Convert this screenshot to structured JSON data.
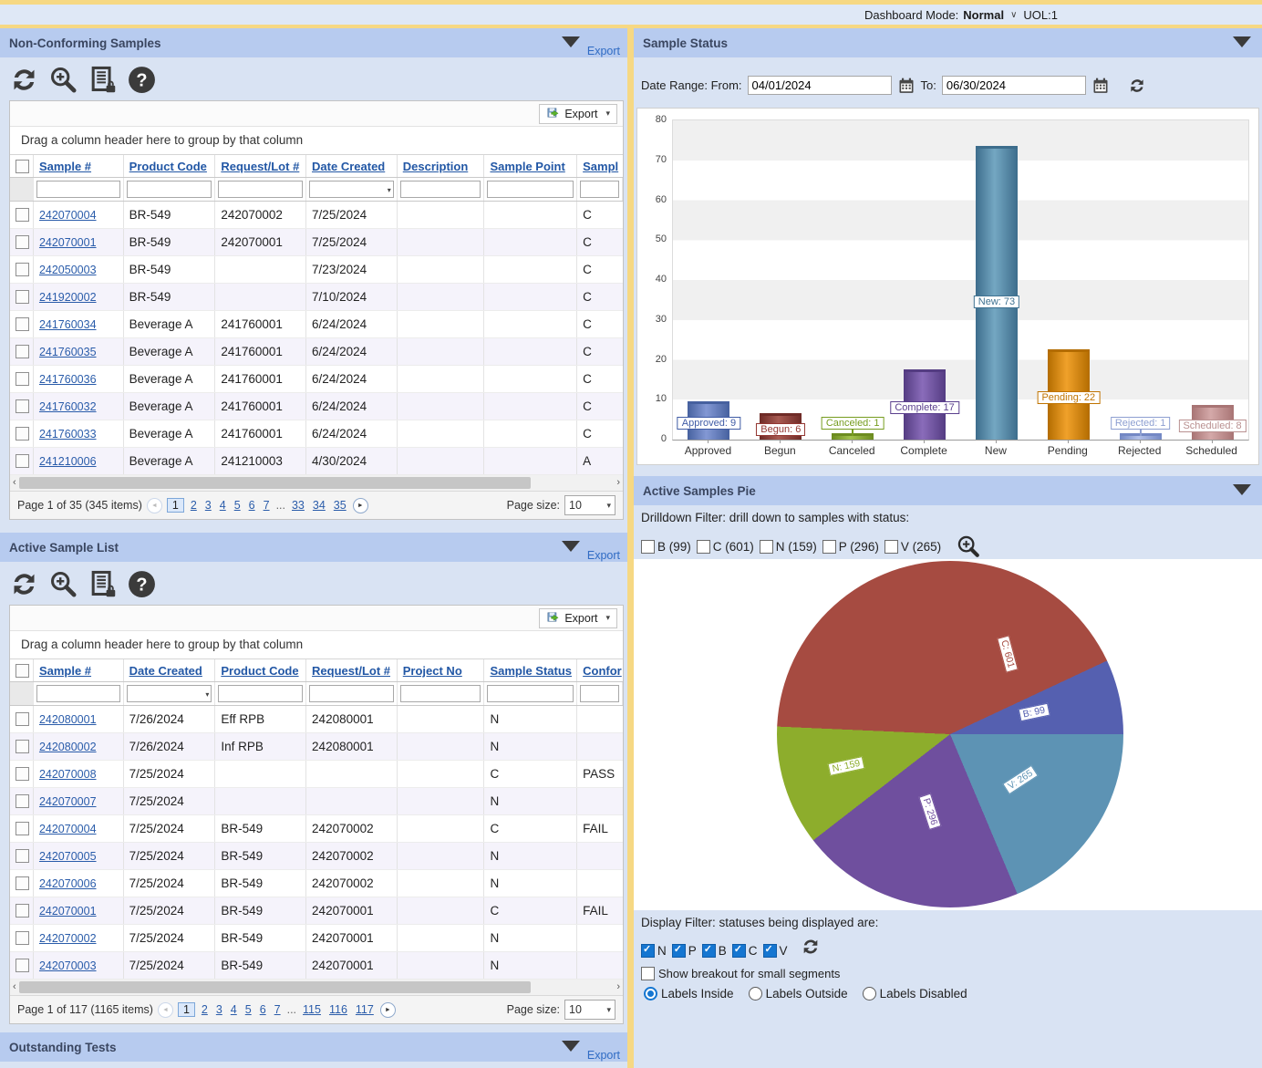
{
  "topbar": {
    "mode_label": "Dashboard Mode:",
    "mode_value": "Normal",
    "uol": "UOL:1"
  },
  "panels": {
    "non_conforming": {
      "title": "Non-Conforming Samples",
      "export": "Export"
    },
    "sample_status": {
      "title": "Sample Status",
      "from_label": "Date Range: From:",
      "date_from": "04/01/2024",
      "to_label": "To:",
      "date_to": "06/30/2024"
    },
    "active_sample_list": {
      "title": "Active Sample List",
      "export": "Export"
    },
    "active_samples_pie": {
      "title": "Active Samples Pie",
      "drilldown_label": "Drilldown Filter: drill down to samples with status:",
      "drill_options": [
        "B (99)",
        "C (601)",
        "N (159)",
        "P (296)",
        "V (265)"
      ],
      "display_label": "Display Filter: statuses being displayed are:",
      "display_options": [
        "N",
        "P",
        "B",
        "C",
        "V"
      ],
      "breakout_label": "Show breakout for small segments",
      "radio_options": [
        "Labels Inside",
        "Labels Outside",
        "Labels Disabled"
      ],
      "radio_selected": 0
    },
    "outstanding_tests": {
      "title": "Outstanding Tests",
      "export": "Export"
    }
  },
  "grid_common": {
    "toolbar_export": "Export",
    "drag_hint": "Drag a column header here to group by that column",
    "page_size_label": "Page size:",
    "page_size": "10",
    "ellipsis": "..."
  },
  "nc_grid": {
    "columns": [
      "Sample #",
      "Product Code",
      "Request/Lot #",
      "Date Created",
      "Description",
      "Sample Point",
      "Sampl"
    ],
    "filter_dropdown_col": 3,
    "rows": [
      [
        "242070004",
        "BR-549",
        "242070002",
        "7/25/2024",
        "",
        "",
        "C"
      ],
      [
        "242070001",
        "BR-549",
        "242070001",
        "7/25/2024",
        "",
        "",
        "C"
      ],
      [
        "242050003",
        "BR-549",
        "",
        "7/23/2024",
        "",
        "",
        "C"
      ],
      [
        "241920002",
        "BR-549",
        "",
        "7/10/2024",
        "",
        "",
        "C"
      ],
      [
        "241760034",
        "Beverage A",
        "241760001",
        "6/24/2024",
        "",
        "",
        "C"
      ],
      [
        "241760035",
        "Beverage A",
        "241760001",
        "6/24/2024",
        "",
        "",
        "C"
      ],
      [
        "241760036",
        "Beverage A",
        "241760001",
        "6/24/2024",
        "",
        "",
        "C"
      ],
      [
        "241760032",
        "Beverage A",
        "241760001",
        "6/24/2024",
        "",
        "",
        "C"
      ],
      [
        "241760033",
        "Beverage A",
        "241760001",
        "6/24/2024",
        "",
        "",
        "C"
      ],
      [
        "241210006",
        "Beverage A",
        "241210003",
        "4/30/2024",
        "",
        "",
        "A"
      ]
    ],
    "pager_summary": "Page 1 of 35 (345 items)",
    "pages_head": [
      "1",
      "2",
      "3",
      "4",
      "5",
      "6",
      "7"
    ],
    "pages_tail": [
      "33",
      "34",
      "35"
    ],
    "current_page": "1"
  },
  "asl_grid": {
    "columns": [
      "Sample #",
      "Date Created",
      "Product Code",
      "Request/Lot #",
      "Project No",
      "Sample Status",
      "Confor"
    ],
    "filter_dropdown_col": 1,
    "rows": [
      [
        "242080001",
        "7/26/2024",
        "Eff RPB",
        "242080001",
        "",
        "N",
        ""
      ],
      [
        "242080002",
        "7/26/2024",
        "Inf RPB",
        "242080001",
        "",
        "N",
        ""
      ],
      [
        "242070008",
        "7/25/2024",
        "",
        "",
        "",
        "C",
        "PASS"
      ],
      [
        "242070007",
        "7/25/2024",
        "",
        "",
        "",
        "N",
        ""
      ],
      [
        "242070004",
        "7/25/2024",
        "BR-549",
        "242070002",
        "",
        "C",
        "FAIL"
      ],
      [
        "242070005",
        "7/25/2024",
        "BR-549",
        "242070002",
        "",
        "N",
        ""
      ],
      [
        "242070006",
        "7/25/2024",
        "BR-549",
        "242070002",
        "",
        "N",
        ""
      ],
      [
        "242070001",
        "7/25/2024",
        "BR-549",
        "242070001",
        "",
        "C",
        "FAIL"
      ],
      [
        "242070002",
        "7/25/2024",
        "BR-549",
        "242070001",
        "",
        "N",
        ""
      ],
      [
        "242070003",
        "7/25/2024",
        "BR-549",
        "242070001",
        "",
        "N",
        ""
      ]
    ],
    "pager_summary": "Page 1 of 117 (1165 items)",
    "pages_head": [
      "1",
      "2",
      "3",
      "4",
      "5",
      "6",
      "7"
    ],
    "pages_tail": [
      "115",
      "116",
      "117"
    ],
    "current_page": "1"
  },
  "chart_data": [
    {
      "type": "bar",
      "title": "Sample Status",
      "categories": [
        "Approved",
        "Begun",
        "Canceled",
        "Complete",
        "New",
        "Pending",
        "Rejected",
        "Scheduled"
      ],
      "values": [
        9,
        6,
        1,
        17,
        73,
        22,
        1,
        8
      ],
      "bar_labels": [
        "Approved: 9",
        "Begun: 6",
        "Canceled: 1",
        "Complete: 17",
        "New: 73",
        "Pending: 22",
        "Rejected: 1",
        "Scheduled: 8"
      ],
      "colors": [
        "#5874bd",
        "#8e3a34",
        "#8aab31",
        "#6b4c9e",
        "#4f87a8",
        "#d88300",
        "#94a7da",
        "#c18d8d"
      ],
      "colors_light": [
        "#8398d4",
        "#a85a52",
        "#a3c24e",
        "#8a6cba",
        "#74a7c2",
        "#f0a12a",
        "#b3c1e8",
        "#d4a9a9"
      ],
      "colors_dark": [
        "#46619f",
        "#6f2b27",
        "#6d8c20",
        "#543c82",
        "#3d6d8c",
        "#b36c00",
        "#7388c4",
        "#a87474"
      ],
      "label_colors": [
        "#3f5ba5",
        "#943732",
        "#769c1f",
        "#5a3f8d",
        "#3f7291",
        "#c07300",
        "#8d9fd1",
        "#b99090"
      ],
      "xlabel": "",
      "ylabel": "",
      "ylim": [
        0,
        80
      ],
      "ytick_step": 10,
      "grid": "horizontal-bands",
      "legend": "none"
    },
    {
      "type": "pie",
      "title": "Active Samples Pie",
      "slices": [
        "V",
        "P",
        "N",
        "C",
        "B"
      ],
      "values": [
        265,
        296,
        159,
        601,
        99
      ],
      "slice_labels": [
        "V: 265",
        "P: 296",
        "N: 159",
        "C: 601",
        "B: 99"
      ],
      "colors": [
        "#5d93b4",
        "#6f4f9e",
        "#8dad2c",
        "#a64b41",
        "#5560b0"
      ],
      "total": 1420,
      "start_angle": "east",
      "direction": "clockwise",
      "legend": "none",
      "label_position": "inside"
    }
  ]
}
